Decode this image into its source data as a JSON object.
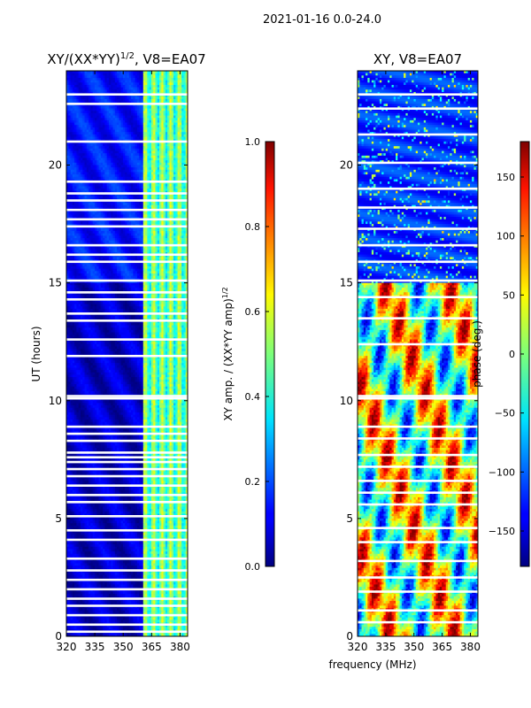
{
  "chart_data": {
    "type": "heatmap",
    "suptitle": "2021-01-16 0.0-24.0",
    "xlabel": "frequency (MHz)",
    "panels": [
      {
        "id": "amp",
        "title_main": "XY/(XX*YY)",
        "title_exp": "1/2",
        "title_suffix": ", V8=EA07",
        "ylabel": "UT (hours)",
        "xlim": [
          320,
          384
        ],
        "ylim": [
          0,
          24
        ],
        "xticks": [
          "320",
          "335",
          "350",
          "365",
          "380"
        ],
        "xtick_values": [
          320,
          335,
          350,
          365,
          380
        ],
        "yticks": [
          "0",
          "5",
          "10",
          "15",
          "20"
        ],
        "ytick_values": [
          0,
          5,
          10,
          15,
          20
        ],
        "bright_band_mhz": [
          360.5,
          384
        ],
        "blank_rows_ut": [
          0.2,
          0.5,
          0.9,
          1.3,
          1.6,
          2.0,
          2.4,
          2.8,
          3.3,
          4.1,
          4.5,
          5.1,
          5.7,
          6.0,
          6.4,
          6.8,
          7.1,
          7.4,
          7.6,
          7.8,
          8.3,
          8.6,
          8.9,
          10.1,
          10.2,
          11.9,
          12.6,
          13.4,
          13.7,
          14.3,
          14.6,
          15.1,
          15.9,
          16.2,
          16.6,
          17.4,
          17.7,
          18.1,
          18.5,
          18.8,
          19.3,
          21.0,
          22.6,
          23.0
        ]
      },
      {
        "id": "phase",
        "title_main": "XY, V8=EA07",
        "xlim": [
          320,
          384
        ],
        "ylim": [
          0,
          24
        ],
        "xticks": [
          "320",
          "335",
          "350",
          "365",
          "380"
        ],
        "xtick_values": [
          320,
          335,
          350,
          365,
          380
        ],
        "yticks": [
          "0",
          "5",
          "10",
          "15",
          "20"
        ],
        "ytick_values": [
          0,
          5,
          10,
          15,
          20
        ],
        "blank_rows_ut": [
          0.6,
          1.1,
          1.9,
          2.5,
          3.2,
          4.0,
          4.6,
          5.6,
          6.1,
          6.6,
          7.2,
          7.7,
          8.4,
          8.9,
          10.1,
          10.2,
          12.4,
          13.5,
          14.4,
          15.1,
          15.9,
          16.6,
          17.3,
          18.2,
          19.0,
          20.1,
          21.3,
          22.4,
          23.0
        ]
      }
    ],
    "colorbars": [
      {
        "id": "amp_cbar",
        "label_main": "XY amp. / (XX*YY amp)",
        "label_exp": "1/2",
        "range": [
          0.0,
          1.0
        ],
        "ticks": [
          "0.0",
          "0.2",
          "0.4",
          "0.6",
          "0.8",
          "1.0"
        ],
        "tick_values": [
          0.0,
          0.2,
          0.4,
          0.6,
          0.8,
          1.0
        ]
      },
      {
        "id": "phase_cbar",
        "label_main": "phase (deg.)",
        "range": [
          -180,
          180
        ],
        "ticks": [
          "−150",
          "−100",
          "−50",
          "0",
          "50",
          "100",
          "150"
        ],
        "tick_values": [
          -150,
          -100,
          -50,
          0,
          50,
          100,
          150
        ]
      }
    ]
  }
}
